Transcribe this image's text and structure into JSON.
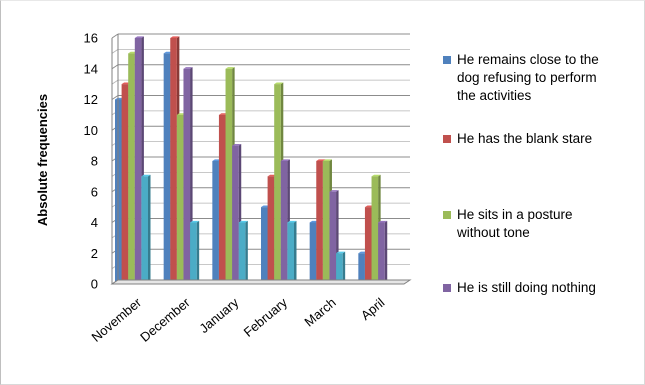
{
  "chart_data": {
    "type": "bar",
    "title": "",
    "xlabel": "",
    "ylabel": "Absolute frequencies",
    "ylim": [
      0,
      16
    ],
    "yticks": [
      0,
      2,
      4,
      6,
      8,
      10,
      12,
      14,
      16
    ],
    "grid": true,
    "legend_position": "right",
    "categories": [
      "November",
      "December",
      "January",
      "February",
      "March",
      "April"
    ],
    "series": [
      {
        "name": "He remains close to the dog refusing to perform the activities",
        "color": "#4F81BD",
        "values": [
          12,
          15,
          8,
          5,
          4,
          2
        ]
      },
      {
        "name": "He has the blank stare",
        "color": "#C0504D",
        "values": [
          13,
          16,
          11,
          7,
          8,
          5
        ]
      },
      {
        "name": "He sits in a posture without tone",
        "color": "#9BBB59",
        "values": [
          15,
          11,
          14,
          13,
          8,
          7
        ]
      },
      {
        "name": "He is still doing nothing",
        "color": "#8064A2",
        "values": [
          16,
          14,
          9,
          8,
          6,
          4
        ]
      },
      {
        "name": "",
        "color": "#4BACC6",
        "values": [
          7,
          4,
          4,
          4,
          2,
          0
        ]
      }
    ]
  }
}
